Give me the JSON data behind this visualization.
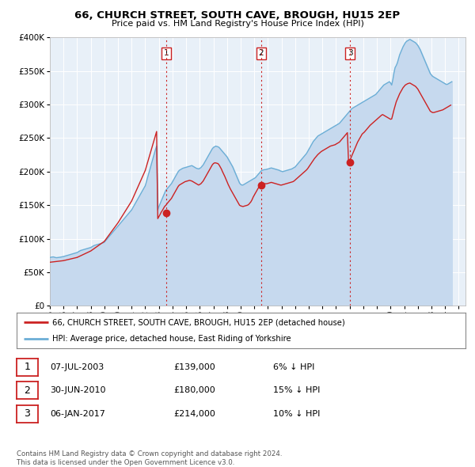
{
  "title": "66, CHURCH STREET, SOUTH CAVE, BROUGH, HU15 2EP",
  "subtitle": "Price paid vs. HM Land Registry's House Price Index (HPI)",
  "ylim": [
    0,
    400000
  ],
  "yticks": [
    0,
    50000,
    100000,
    150000,
    200000,
    250000,
    300000,
    350000,
    400000
  ],
  "xlim_start": 1995.0,
  "xlim_end": 2025.5,
  "plot_bg_color": "#e8f0f8",
  "hpi_color": "#6baed6",
  "hpi_fill_color": "#c6d9ee",
  "property_color": "#cc2222",
  "vline_color": "#cc2222",
  "transaction_dates": [
    2003.52,
    2010.49,
    2017.02
  ],
  "transaction_prices": [
    139000,
    180000,
    214000
  ],
  "transaction_labels": [
    "1",
    "2",
    "3"
  ],
  "legend_property": "66, CHURCH STREET, SOUTH CAVE, BROUGH, HU15 2EP (detached house)",
  "legend_hpi": "HPI: Average price, detached house, East Riding of Yorkshire",
  "table_data": [
    [
      "1",
      "07-JUL-2003",
      "£139,000",
      "6% ↓ HPI"
    ],
    [
      "2",
      "30-JUN-2010",
      "£180,000",
      "15% ↓ HPI"
    ],
    [
      "3",
      "06-JAN-2017",
      "£214,000",
      "10% ↓ HPI"
    ]
  ],
  "footer": "Contains HM Land Registry data © Crown copyright and database right 2024.\nThis data is licensed under the Open Government Licence v3.0.",
  "hpi_data_x": [
    1995.0,
    1995.083,
    1995.167,
    1995.25,
    1995.333,
    1995.417,
    1995.5,
    1995.583,
    1995.667,
    1995.75,
    1995.833,
    1995.917,
    1996.0,
    1996.083,
    1996.167,
    1996.25,
    1996.333,
    1996.417,
    1996.5,
    1996.583,
    1996.667,
    1996.75,
    1996.833,
    1996.917,
    1997.0,
    1997.083,
    1997.167,
    1997.25,
    1997.333,
    1997.417,
    1997.5,
    1997.583,
    1997.667,
    1997.75,
    1997.833,
    1997.917,
    1998.0,
    1998.083,
    1998.167,
    1998.25,
    1998.333,
    1998.417,
    1998.5,
    1998.583,
    1998.667,
    1998.75,
    1998.833,
    1998.917,
    1999.0,
    1999.083,
    1999.167,
    1999.25,
    1999.333,
    1999.417,
    1999.5,
    1999.583,
    1999.667,
    1999.75,
    1999.833,
    1999.917,
    2000.0,
    2000.083,
    2000.167,
    2000.25,
    2000.333,
    2000.417,
    2000.5,
    2000.583,
    2000.667,
    2000.75,
    2000.833,
    2000.917,
    2001.0,
    2001.083,
    2001.167,
    2001.25,
    2001.333,
    2001.417,
    2001.5,
    2001.583,
    2001.667,
    2001.75,
    2001.833,
    2001.917,
    2002.0,
    2002.083,
    2002.167,
    2002.25,
    2002.333,
    2002.417,
    2002.5,
    2002.583,
    2002.667,
    2002.75,
    2002.833,
    2002.917,
    2003.0,
    2003.083,
    2003.167,
    2003.25,
    2003.333,
    2003.417,
    2003.5,
    2003.583,
    2003.667,
    2003.75,
    2003.833,
    2003.917,
    2004.0,
    2004.083,
    2004.167,
    2004.25,
    2004.333,
    2004.417,
    2004.5,
    2004.583,
    2004.667,
    2004.75,
    2004.833,
    2004.917,
    2005.0,
    2005.083,
    2005.167,
    2005.25,
    2005.333,
    2005.417,
    2005.5,
    2005.583,
    2005.667,
    2005.75,
    2005.833,
    2005.917,
    2006.0,
    2006.083,
    2006.167,
    2006.25,
    2006.333,
    2006.417,
    2006.5,
    2006.583,
    2006.667,
    2006.75,
    2006.833,
    2006.917,
    2007.0,
    2007.083,
    2007.167,
    2007.25,
    2007.333,
    2007.417,
    2007.5,
    2007.583,
    2007.667,
    2007.75,
    2007.833,
    2007.917,
    2008.0,
    2008.083,
    2008.167,
    2008.25,
    2008.333,
    2008.417,
    2008.5,
    2008.583,
    2008.667,
    2008.75,
    2008.833,
    2008.917,
    2009.0,
    2009.083,
    2009.167,
    2009.25,
    2009.333,
    2009.417,
    2009.5,
    2009.583,
    2009.667,
    2009.75,
    2009.833,
    2009.917,
    2010.0,
    2010.083,
    2010.167,
    2010.25,
    2010.333,
    2010.417,
    2010.5,
    2010.583,
    2010.667,
    2010.75,
    2010.833,
    2010.917,
    2011.0,
    2011.083,
    2011.167,
    2011.25,
    2011.333,
    2011.417,
    2011.5,
    2011.583,
    2011.667,
    2011.75,
    2011.833,
    2011.917,
    2012.0,
    2012.083,
    2012.167,
    2012.25,
    2012.333,
    2012.417,
    2012.5,
    2012.583,
    2012.667,
    2012.75,
    2012.833,
    2012.917,
    2013.0,
    2013.083,
    2013.167,
    2013.25,
    2013.333,
    2013.417,
    2013.5,
    2013.583,
    2013.667,
    2013.75,
    2013.833,
    2013.917,
    2014.0,
    2014.083,
    2014.167,
    2014.25,
    2014.333,
    2014.417,
    2014.5,
    2014.583,
    2014.667,
    2014.75,
    2014.833,
    2014.917,
    2015.0,
    2015.083,
    2015.167,
    2015.25,
    2015.333,
    2015.417,
    2015.5,
    2015.583,
    2015.667,
    2015.75,
    2015.833,
    2015.917,
    2016.0,
    2016.083,
    2016.167,
    2016.25,
    2016.333,
    2016.417,
    2016.5,
    2016.583,
    2016.667,
    2016.75,
    2016.833,
    2016.917,
    2017.0,
    2017.083,
    2017.167,
    2017.25,
    2017.333,
    2017.417,
    2017.5,
    2017.583,
    2017.667,
    2017.75,
    2017.833,
    2017.917,
    2018.0,
    2018.083,
    2018.167,
    2018.25,
    2018.333,
    2018.417,
    2018.5,
    2018.583,
    2018.667,
    2018.75,
    2018.833,
    2018.917,
    2019.0,
    2019.083,
    2019.167,
    2019.25,
    2019.333,
    2019.417,
    2019.5,
    2019.583,
    2019.667,
    2019.75,
    2019.833,
    2019.917,
    2020.0,
    2020.083,
    2020.167,
    2020.25,
    2020.333,
    2020.417,
    2020.5,
    2020.583,
    2020.667,
    2020.75,
    2020.833,
    2020.917,
    2021.0,
    2021.083,
    2021.167,
    2021.25,
    2021.333,
    2021.417,
    2021.5,
    2021.583,
    2021.667,
    2021.75,
    2021.833,
    2021.917,
    2022.0,
    2022.083,
    2022.167,
    2022.25,
    2022.333,
    2022.417,
    2022.5,
    2022.583,
    2022.667,
    2022.75,
    2022.833,
    2022.917,
    2023.0,
    2023.083,
    2023.167,
    2023.25,
    2023.333,
    2023.417,
    2023.5,
    2023.583,
    2023.667,
    2023.75,
    2023.833,
    2023.917,
    2024.0,
    2024.083,
    2024.167,
    2024.25,
    2024.333,
    2024.417,
    2024.5
  ],
  "hpi_data_y": [
    72000,
    72500,
    72800,
    73000,
    72500,
    72000,
    71800,
    72000,
    72300,
    72500,
    72800,
    73000,
    73500,
    74000,
    74500,
    75000,
    75500,
    76000,
    76500,
    77000,
    77500,
    78000,
    78500,
    79000,
    79500,
    80500,
    81500,
    82500,
    83000,
    83500,
    84000,
    84500,
    85000,
    85500,
    86000,
    86500,
    87000,
    88000,
    89000,
    90000,
    90500,
    91000,
    91500,
    92000,
    92500,
    93000,
    93500,
    94000,
    95000,
    97000,
    99000,
    101000,
    103000,
    105000,
    107000,
    109000,
    111000,
    113000,
    115000,
    117000,
    119000,
    121000,
    123000,
    125000,
    127000,
    129000,
    131000,
    133000,
    135000,
    137000,
    139000,
    141000,
    143000,
    146000,
    149000,
    152000,
    155000,
    158000,
    161000,
    164000,
    167000,
    170000,
    173000,
    176000,
    179000,
    185000,
    191000,
    197000,
    203000,
    209000,
    215000,
    221000,
    227000,
    233000,
    238000,
    143000,
    148000,
    152000,
    156000,
    160000,
    164000,
    168000,
    172000,
    174000,
    176000,
    178000,
    180000,
    182000,
    185000,
    188000,
    191000,
    194000,
    197000,
    200000,
    202000,
    203000,
    204000,
    205000,
    205500,
    206000,
    206500,
    207000,
    207500,
    208000,
    208500,
    209000,
    208000,
    207000,
    206000,
    205000,
    204500,
    204000,
    205000,
    206000,
    208000,
    210000,
    213000,
    216000,
    219000,
    222000,
    225000,
    228000,
    231000,
    234000,
    236000,
    237000,
    238000,
    237500,
    237000,
    236000,
    234000,
    232000,
    230000,
    228000,
    226000,
    224000,
    222000,
    219000,
    216000,
    213000,
    210000,
    207000,
    203000,
    199000,
    195000,
    191000,
    187000,
    183000,
    181000,
    180000,
    180000,
    181000,
    182000,
    183000,
    184000,
    185000,
    186000,
    187000,
    188000,
    189000,
    190000,
    191000,
    193000,
    195000,
    197000,
    199000,
    201000,
    202000,
    202500,
    203000,
    203000,
    203500,
    204000,
    204500,
    205000,
    205500,
    205000,
    204500,
    204000,
    203500,
    203000,
    202500,
    202000,
    201000,
    200500,
    200000,
    200500,
    201000,
    201500,
    202000,
    202500,
    203000,
    203500,
    204000,
    205000,
    206000,
    207000,
    209000,
    211000,
    213000,
    215000,
    217000,
    219000,
    221000,
    223000,
    225000,
    227000,
    230000,
    233000,
    236000,
    239000,
    242000,
    245000,
    247000,
    249000,
    251000,
    253000,
    254000,
    255000,
    256000,
    257000,
    258000,
    259000,
    260000,
    261000,
    262000,
    263000,
    264000,
    265000,
    266000,
    267000,
    268000,
    269000,
    270000,
    271000,
    272000,
    274000,
    276000,
    278000,
    280000,
    282000,
    284000,
    286000,
    288000,
    290000,
    292000,
    294000,
    295000,
    296000,
    297000,
    298000,
    299000,
    300000,
    301000,
    302000,
    303000,
    304000,
    305000,
    306000,
    307000,
    308000,
    309000,
    310000,
    311000,
    312000,
    313000,
    314000,
    315000,
    317000,
    319000,
    321000,
    323000,
    325000,
    327000,
    329000,
    330000,
    331000,
    332000,
    333000,
    334000,
    332000,
    329000,
    337000,
    347000,
    355000,
    358000,
    362000,
    368000,
    374000,
    378000,
    382000,
    386000,
    389000,
    392000,
    394000,
    395000,
    396000,
    397000,
    396000,
    395000,
    394000,
    393000,
    392000,
    390000,
    388000,
    385000,
    382000,
    378000,
    374000,
    370000,
    366000,
    362000,
    358000,
    354000,
    350000,
    346000,
    344000,
    342000,
    341000,
    340000,
    339000,
    338000,
    337000,
    336000,
    335000,
    334000,
    333000,
    332000,
    331000,
    330000,
    330000,
    331000,
    332000,
    333000,
    334000,
    335000,
    336000,
    337000
  ],
  "property_data_x": [
    1995.0,
    1995.083,
    1995.167,
    1995.25,
    1995.333,
    1995.417,
    1995.5,
    1995.583,
    1995.667,
    1995.75,
    1995.833,
    1995.917,
    1996.0,
    1996.083,
    1996.167,
    1996.25,
    1996.333,
    1996.417,
    1996.5,
    1996.583,
    1996.667,
    1996.75,
    1996.833,
    1996.917,
    1997.0,
    1997.083,
    1997.167,
    1997.25,
    1997.333,
    1997.417,
    1997.5,
    1997.583,
    1997.667,
    1997.75,
    1997.833,
    1997.917,
    1998.0,
    1998.083,
    1998.167,
    1998.25,
    1998.333,
    1998.417,
    1998.5,
    1998.583,
    1998.667,
    1998.75,
    1998.833,
    1998.917,
    1999.0,
    1999.083,
    1999.167,
    1999.25,
    1999.333,
    1999.417,
    1999.5,
    1999.583,
    1999.667,
    1999.75,
    1999.833,
    1999.917,
    2000.0,
    2000.083,
    2000.167,
    2000.25,
    2000.333,
    2000.417,
    2000.5,
    2000.583,
    2000.667,
    2000.75,
    2000.833,
    2000.917,
    2001.0,
    2001.083,
    2001.167,
    2001.25,
    2001.333,
    2001.417,
    2001.5,
    2001.583,
    2001.667,
    2001.75,
    2001.833,
    2001.917,
    2002.0,
    2002.083,
    2002.167,
    2002.25,
    2002.333,
    2002.417,
    2002.5,
    2002.583,
    2002.667,
    2002.75,
    2002.833,
    2002.917,
    2003.0,
    2003.083,
    2003.167,
    2003.25,
    2003.333,
    2003.417,
    2003.52,
    2003.583,
    2003.667,
    2003.75,
    2003.833,
    2003.917,
    2004.0,
    2004.083,
    2004.167,
    2004.25,
    2004.333,
    2004.417,
    2004.5,
    2004.583,
    2004.667,
    2004.75,
    2004.833,
    2004.917,
    2005.0,
    2005.083,
    2005.167,
    2005.25,
    2005.333,
    2005.417,
    2005.5,
    2005.583,
    2005.667,
    2005.75,
    2005.833,
    2005.917,
    2006.0,
    2006.083,
    2006.167,
    2006.25,
    2006.333,
    2006.417,
    2006.5,
    2006.583,
    2006.667,
    2006.75,
    2006.833,
    2006.917,
    2007.0,
    2007.083,
    2007.167,
    2007.25,
    2007.333,
    2007.417,
    2007.5,
    2007.583,
    2007.667,
    2007.75,
    2007.833,
    2007.917,
    2008.0,
    2008.083,
    2008.167,
    2008.25,
    2008.333,
    2008.417,
    2008.5,
    2008.583,
    2008.667,
    2008.75,
    2008.833,
    2008.917,
    2009.0,
    2009.083,
    2009.167,
    2009.25,
    2009.333,
    2009.417,
    2009.5,
    2009.583,
    2009.667,
    2009.75,
    2009.833,
    2009.917,
    2010.0,
    2010.083,
    2010.167,
    2010.25,
    2010.333,
    2010.417,
    2010.49,
    2010.583,
    2010.667,
    2010.75,
    2010.833,
    2010.917,
    2011.0,
    2011.083,
    2011.167,
    2011.25,
    2011.333,
    2011.417,
    2011.5,
    2011.583,
    2011.667,
    2011.75,
    2011.833,
    2011.917,
    2012.0,
    2012.083,
    2012.167,
    2012.25,
    2012.333,
    2012.417,
    2012.5,
    2012.583,
    2012.667,
    2012.75,
    2012.833,
    2012.917,
    2013.0,
    2013.083,
    2013.167,
    2013.25,
    2013.333,
    2013.417,
    2013.5,
    2013.583,
    2013.667,
    2013.75,
    2013.833,
    2013.917,
    2014.0,
    2014.083,
    2014.167,
    2014.25,
    2014.333,
    2014.417,
    2014.5,
    2014.583,
    2014.667,
    2014.75,
    2014.833,
    2014.917,
    2015.0,
    2015.083,
    2015.167,
    2015.25,
    2015.333,
    2015.417,
    2015.5,
    2015.583,
    2015.667,
    2015.75,
    2015.833,
    2015.917,
    2016.0,
    2016.083,
    2016.167,
    2016.25,
    2016.333,
    2016.417,
    2016.5,
    2016.583,
    2016.667,
    2016.75,
    2016.833,
    2016.917,
    2017.02,
    2017.083,
    2017.167,
    2017.25,
    2017.333,
    2017.417,
    2017.5,
    2017.583,
    2017.667,
    2017.75,
    2017.833,
    2017.917,
    2018.0,
    2018.083,
    2018.167,
    2018.25,
    2018.333,
    2018.417,
    2018.5,
    2018.583,
    2018.667,
    2018.75,
    2018.833,
    2018.917,
    2019.0,
    2019.083,
    2019.167,
    2019.25,
    2019.333,
    2019.417,
    2019.5,
    2019.583,
    2019.667,
    2019.75,
    2019.833,
    2019.917,
    2020.0,
    2020.083,
    2020.167,
    2020.25,
    2020.333,
    2020.417,
    2020.5,
    2020.583,
    2020.667,
    2020.75,
    2020.833,
    2020.917,
    2021.0,
    2021.083,
    2021.167,
    2021.25,
    2021.333,
    2021.417,
    2021.5,
    2021.583,
    2021.667,
    2021.75,
    2021.833,
    2021.917,
    2022.0,
    2022.083,
    2022.167,
    2022.25,
    2022.333,
    2022.417,
    2022.5,
    2022.583,
    2022.667,
    2022.75,
    2022.833,
    2022.917,
    2023.0,
    2023.083,
    2023.167,
    2023.25,
    2023.333,
    2023.417,
    2023.5,
    2023.583,
    2023.667,
    2023.75,
    2023.833,
    2023.917,
    2024.0,
    2024.083,
    2024.167,
    2024.25,
    2024.333,
    2024.417,
    2024.5
  ],
  "property_data_y": [
    65000,
    65200,
    65400,
    65600,
    65800,
    66000,
    66200,
    66400,
    66600,
    66800,
    67000,
    67200,
    67400,
    67800,
    68200,
    68600,
    69000,
    69400,
    69800,
    70200,
    70600,
    71000,
    71400,
    71800,
    72200,
    73000,
    73800,
    74600,
    75400,
    76200,
    77000,
    77800,
    78600,
    79400,
    80200,
    81000,
    81800,
    83000,
    84200,
    85400,
    86600,
    87800,
    89000,
    90200,
    91400,
    92600,
    93800,
    95000,
    96200,
    98500,
    100800,
    103100,
    105400,
    107700,
    110000,
    112300,
    114600,
    116900,
    119200,
    121500,
    123800,
    126500,
    129200,
    131900,
    134600,
    137300,
    140000,
    142700,
    145400,
    148100,
    150800,
    153500,
    156200,
    160000,
    163800,
    167600,
    171400,
    175200,
    179000,
    182800,
    186600,
    190400,
    194200,
    198000,
    201800,
    207600,
    213400,
    219200,
    225000,
    230800,
    236600,
    242400,
    248200,
    254000,
    259800,
    130000,
    133000,
    136000,
    139500,
    142000,
    145000,
    148000,
    150000,
    152000,
    154000,
    156000,
    158000,
    160000,
    163000,
    166000,
    169000,
    172000,
    175000,
    178000,
    180000,
    181000,
    182000,
    183000,
    184000,
    185000,
    185500,
    186000,
    186500,
    187000,
    186500,
    186000,
    185000,
    184000,
    183000,
    182000,
    181000,
    180000,
    181000,
    182000,
    184000,
    186000,
    189000,
    192000,
    195000,
    198000,
    201000,
    204000,
    207000,
    210000,
    212000,
    213000,
    213000,
    212500,
    212000,
    210000,
    207000,
    204000,
    200000,
    196500,
    193000,
    189000,
    185000,
    181000,
    177500,
    174000,
    171000,
    168000,
    165000,
    162000,
    159000,
    156000,
    153000,
    150000,
    149000,
    148500,
    148000,
    148500,
    149000,
    149500,
    150000,
    151000,
    153000,
    155000,
    158000,
    162000,
    165000,
    168000,
    171000,
    174000,
    177000,
    180000,
    181000,
    181500,
    182000,
    182000,
    182000,
    182000,
    182500,
    183000,
    183500,
    184000,
    183500,
    183000,
    182500,
    182000,
    181500,
    181000,
    180500,
    180000,
    180000,
    180500,
    181000,
    181500,
    182000,
    182500,
    183000,
    183500,
    184000,
    184500,
    185000,
    186000,
    187500,
    189000,
    190500,
    192000,
    193500,
    195000,
    196500,
    198000,
    199500,
    201000,
    202500,
    204500,
    207000,
    209500,
    212000,
    214500,
    217000,
    219500,
    221500,
    223500,
    225500,
    227000,
    228500,
    230000,
    231000,
    232000,
    233000,
    234000,
    235000,
    236000,
    237000,
    238000,
    238500,
    239000,
    239500,
    240000,
    241000,
    242000,
    243000,
    244000,
    246000,
    248000,
    250000,
    252000,
    254000,
    256000,
    258000,
    214000,
    217000,
    220000,
    224000,
    228000,
    232000,
    236000,
    240000,
    244000,
    247000,
    250000,
    253000,
    256000,
    257500,
    259000,
    261000,
    263000,
    265000,
    267000,
    269000,
    270500,
    272000,
    273500,
    275000,
    276500,
    278000,
    279500,
    281000,
    282500,
    284000,
    285000,
    284000,
    283000,
    282000,
    281000,
    280000,
    279000,
    278000,
    278500,
    285000,
    292000,
    298000,
    304000,
    308000,
    312000,
    316000,
    319000,
    322000,
    325000,
    327000,
    329000,
    330000,
    331000,
    331500,
    332000,
    331000,
    330000,
    329000,
    328000,
    327000,
    325000,
    323000,
    320000,
    317000,
    314000,
    311000,
    308000,
    305000,
    302000,
    299000,
    296000,
    293000,
    290000,
    289000,
    288000,
    288000,
    288500,
    289000,
    289500,
    290000,
    290500,
    291000,
    291500,
    292000,
    293000,
    294000,
    295000,
    296000,
    297000,
    298000,
    299000
  ]
}
